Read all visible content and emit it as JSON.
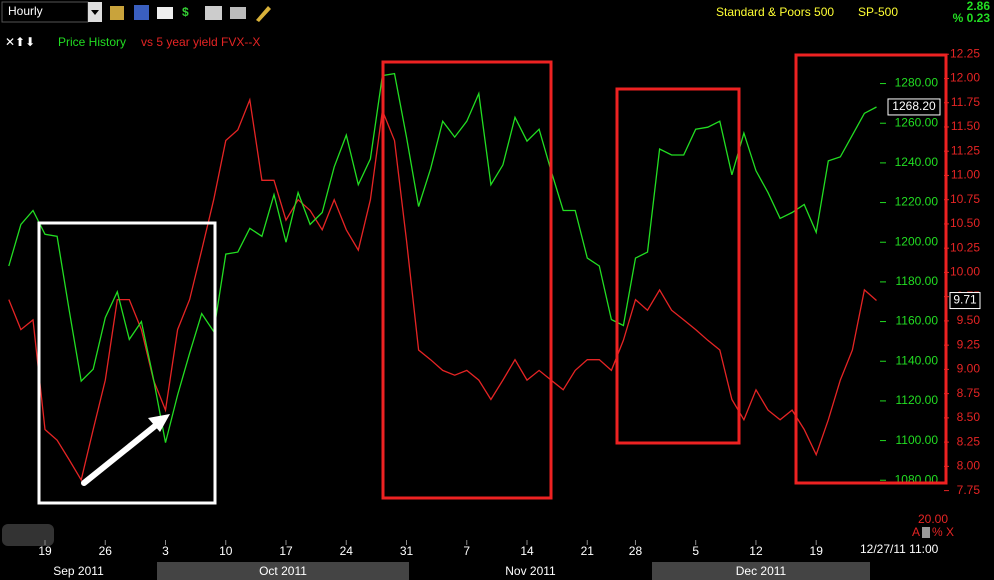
{
  "chart_data": {
    "type": "line",
    "toolbar": {
      "period": "Hourly"
    },
    "symbol_name": "Standard & Poors 500",
    "symbol": "SP-500",
    "change": "2.86",
    "change_pct": "% 0.23",
    "legend": [
      "Price History",
      "vs 5 year yield FVX--X"
    ],
    "x": [
      "2011-09-14",
      "2011-09-15",
      "2011-09-16",
      "2011-09-19",
      "2011-09-20",
      "2011-09-21",
      "2011-09-22",
      "2011-09-23",
      "2011-09-26",
      "2011-09-27",
      "2011-09-28",
      "2011-09-29",
      "2011-09-30",
      "2011-10-03",
      "2011-10-04",
      "2011-10-05",
      "2011-10-06",
      "2011-10-07",
      "2011-10-10",
      "2011-10-11",
      "2011-10-12",
      "2011-10-13",
      "2011-10-14",
      "2011-10-17",
      "2011-10-18",
      "2011-10-19",
      "2011-10-20",
      "2011-10-21",
      "2011-10-24",
      "2011-10-25",
      "2011-10-26",
      "2011-10-27",
      "2011-10-28",
      "2011-10-31",
      "2011-11-01",
      "2011-11-02",
      "2011-11-03",
      "2011-11-04",
      "2011-11-07",
      "2011-11-08",
      "2011-11-09",
      "2011-11-10",
      "2011-11-11",
      "2011-11-14",
      "2011-11-15",
      "2011-11-16",
      "2011-11-17",
      "2011-11-18",
      "2011-11-21",
      "2011-11-22",
      "2011-11-23",
      "2011-11-25",
      "2011-11-28",
      "2011-11-29",
      "2011-11-30",
      "2011-12-01",
      "2011-12-02",
      "2011-12-05",
      "2011-12-06",
      "2011-12-07",
      "2011-12-08",
      "2011-12-09",
      "2011-12-12",
      "2011-12-13",
      "2011-12-14",
      "2011-12-15",
      "2011-12-16",
      "2011-12-19",
      "2011-12-20",
      "2011-12-21",
      "2011-12-22",
      "2011-12-23",
      "2011-12-27"
    ],
    "series": [
      {
        "name": "Price History",
        "color": "#22dd22",
        "values": [
          1188,
          1209,
          1216,
          1204,
          1203,
          1166,
          1130,
          1136,
          1162,
          1175,
          1151,
          1160,
          1131,
          1099,
          1123,
          1144,
          1164,
          1155,
          1194,
          1195,
          1207,
          1203,
          1224,
          1200,
          1225,
          1209,
          1215,
          1238,
          1254,
          1229,
          1242,
          1284,
          1285,
          1253,
          1218,
          1237,
          1261,
          1253,
          1261,
          1275,
          1229,
          1239,
          1263,
          1251,
          1257,
          1236,
          1216,
          1216,
          1192,
          1188,
          1161,
          1158,
          1192,
          1195,
          1247,
          1244,
          1244,
          1257,
          1258,
          1261,
          1234,
          1255,
          1236,
          1225,
          1212,
          1215,
          1219,
          1205,
          1241,
          1243,
          1254,
          1265,
          1268.2
        ],
        "last_value_label": "1268.20"
      },
      {
        "name": "vs 5 year yield FVX--X",
        "color": "#e52424",
        "axis": "y2",
        "values": [
          9.72,
          9.41,
          9.51,
          8.38,
          8.27,
          8.07,
          7.86,
          8.38,
          8.89,
          9.72,
          9.72,
          9.41,
          8.89,
          8.58,
          9.41,
          9.72,
          10.23,
          10.75,
          11.36,
          11.47,
          11.78,
          10.95,
          10.95,
          10.54,
          10.75,
          10.64,
          10.44,
          10.75,
          10.44,
          10.23,
          10.75,
          11.67,
          11.36,
          10.33,
          9.2,
          9.1,
          8.99,
          8.94,
          8.99,
          8.89,
          8.69,
          8.89,
          9.1,
          8.89,
          8.99,
          8.89,
          8.79,
          8.99,
          9.1,
          9.1,
          8.99,
          9.3,
          9.72,
          9.61,
          9.82,
          9.61,
          9.51,
          9.41,
          9.3,
          9.2,
          8.69,
          8.48,
          8.79,
          8.58,
          8.48,
          8.58,
          8.38,
          8.12,
          8.48,
          8.89,
          9.2,
          9.82,
          9.71
        ],
        "last_value_label": "9.71"
      }
    ],
    "ylim": [
      1065,
      1307
    ],
    "yticks": [
      {
        "value": 1080,
        "label": "1080.00"
      },
      {
        "value": 1100,
        "label": "1100.00"
      },
      {
        "value": 1120,
        "label": "1120.00"
      },
      {
        "value": 1140,
        "label": "1140.00"
      },
      {
        "value": 1160,
        "label": "1160.00"
      },
      {
        "value": 1180,
        "label": "1180.00"
      },
      {
        "value": 1200,
        "label": "1200.00"
      },
      {
        "value": 1220,
        "label": "1220.00"
      },
      {
        "value": 1240,
        "label": "1240.00"
      },
      {
        "value": 1260,
        "label": "1260.00"
      },
      {
        "value": 1280,
        "label": "1280.00"
      }
    ],
    "y2lim": [
      7.55,
      12.5
    ],
    "y2ticks": [
      7.75,
      {
        "value": 8,
        "label": "8.00"
      },
      8.25,
      {
        "value": 8.5,
        "label": "8.50"
      },
      8.75,
      {
        "value": 9,
        "label": "9.00"
      },
      9.25,
      {
        "value": 9.5,
        "label": "9.50"
      },
      9.75,
      {
        "value": 10,
        "label": "10.00"
      },
      10.25,
      {
        "value": 10.5,
        "label": "10.50"
      },
      10.75,
      {
        "value": 11,
        "label": "11.00"
      },
      11.25,
      {
        "value": 11.5,
        "label": "11.50"
      },
      11.75,
      {
        "value": 12,
        "label": "12.00"
      },
      12.25
    ],
    "xticks": [
      {
        "value": "2011-09-19",
        "label": "19"
      },
      {
        "value": "2011-09-26",
        "label": "26"
      },
      {
        "value": "2011-10-03",
        "label": "3"
      },
      {
        "value": "2011-10-10",
        "label": "10"
      },
      {
        "value": "2011-10-17",
        "label": "17"
      },
      {
        "value": "2011-10-24",
        "label": "24"
      },
      {
        "value": "2011-10-31",
        "label": "31"
      },
      {
        "value": "2011-11-07",
        "label": "7"
      },
      {
        "value": "2011-11-14",
        "label": "14"
      },
      {
        "value": "2011-11-21",
        "label": "21"
      },
      {
        "value": "2011-11-28",
        "label": "28"
      },
      {
        "value": "2011-12-05",
        "label": "5"
      },
      {
        "value": "2011-12-12",
        "label": "12"
      },
      {
        "value": "2011-12-19",
        "label": "19"
      }
    ],
    "months": [
      "Sep 2011",
      "Oct 2011",
      "Nov 2011",
      "Dec 2011"
    ],
    "lower_value": "20.00",
    "lower_flags": "% X",
    "lower_flag_a": "A",
    "timestamp": "12/27/11 11:00"
  }
}
